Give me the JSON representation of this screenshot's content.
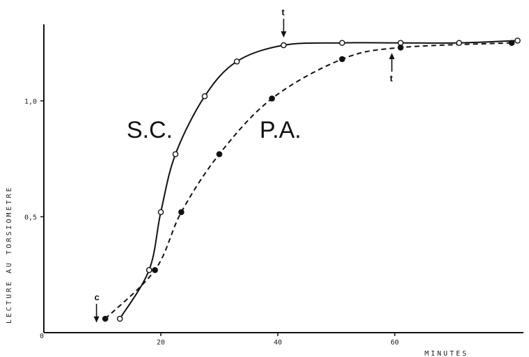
{
  "chart_data": {
    "type": "line",
    "title": "",
    "xlabel": "MINUTES",
    "ylabel": "LECTURE AU TORSIOMETRE",
    "xlim": [
      0,
      82
    ],
    "ylim": [
      0,
      1.33
    ],
    "xticks": [
      20,
      40,
      60
    ],
    "xtick_labels": [
      "20",
      "40",
      "60"
    ],
    "yticks": [
      0.5,
      1.0
    ],
    "ytick_labels": [
      "0,5",
      "1,0"
    ],
    "origin_label": "0",
    "grid": false,
    "legend": "none",
    "series": [
      {
        "name": "S.C.",
        "marker": "open-circle",
        "line": "solid",
        "x": [
          13,
          18,
          20,
          22.5,
          27.5,
          33,
          41,
          51,
          61,
          71,
          81
        ],
        "y": [
          0.06,
          0.27,
          0.52,
          0.77,
          1.02,
          1.17,
          1.24,
          1.25,
          1.25,
          1.25,
          1.26
        ]
      },
      {
        "name": "P.A.",
        "marker": "filled-circle",
        "line": "dashed",
        "x": [
          10.5,
          19,
          23.5,
          30,
          39,
          51,
          61,
          80
        ],
        "y": [
          0.06,
          0.27,
          0.52,
          0.77,
          1.01,
          1.18,
          1.23,
          1.25
        ]
      }
    ],
    "annotations": [
      {
        "text": "c",
        "x": 9,
        "y": 0.04,
        "arrow": "down"
      },
      {
        "text": "t",
        "x": 41,
        "y": 1.27,
        "arrow": "down"
      },
      {
        "text": "t",
        "x": 59.5,
        "y": 1.21,
        "arrow": "up"
      }
    ],
    "series_colors": {
      "line": "#111111",
      "axis": "#111111"
    }
  }
}
